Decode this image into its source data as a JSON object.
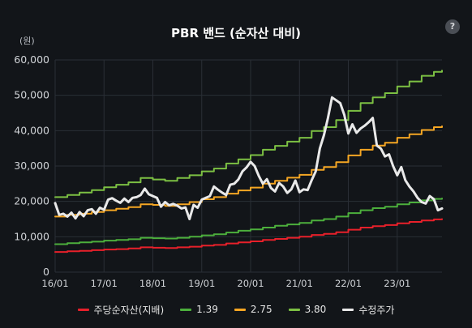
{
  "chart_data": {
    "type": "line",
    "title": "PBR 밴드 (순자산 대비)",
    "unit": "(원)",
    "help_icon_label": "?",
    "ylim": [
      0,
      60000
    ],
    "yticks": [
      "0",
      "10,000",
      "20,000",
      "30,000",
      "40,000",
      "50,000",
      "60,000"
    ],
    "ytick_values": [
      0,
      10000,
      20000,
      30000,
      40000,
      50000,
      60000
    ],
    "xlim": [
      "2016-01",
      "2023-12"
    ],
    "xticks": [
      "16/01",
      "17/01",
      "18/01",
      "19/01",
      "20/01",
      "21/01",
      "22/01",
      "23/01"
    ],
    "grid": true,
    "legend_position": "bottom",
    "colors": {
      "background": "#121519",
      "grid": "#2a2f36"
    },
    "series": [
      {
        "name": "주당순자산(지배)",
        "color": "#e8202a",
        "width": 2,
        "kind": "step",
        "points": [
          [
            "2016-01",
            5700
          ],
          [
            "2016-04",
            5900
          ],
          [
            "2016-07",
            6000
          ],
          [
            "2016-10",
            6200
          ],
          [
            "2017-01",
            6400
          ],
          [
            "2017-04",
            6500
          ],
          [
            "2017-07",
            6700
          ],
          [
            "2017-10",
            7000
          ],
          [
            "2018-01",
            6900
          ],
          [
            "2018-04",
            6800
          ],
          [
            "2018-07",
            7000
          ],
          [
            "2018-10",
            7200
          ],
          [
            "2019-01",
            7500
          ],
          [
            "2019-04",
            7700
          ],
          [
            "2019-07",
            8100
          ],
          [
            "2019-10",
            8400
          ],
          [
            "2020-01",
            8700
          ],
          [
            "2020-04",
            9100
          ],
          [
            "2020-07",
            9400
          ],
          [
            "2020-10",
            9700
          ],
          [
            "2021-01",
            10000
          ],
          [
            "2021-04",
            10500
          ],
          [
            "2021-07",
            10800
          ],
          [
            "2021-10",
            11300
          ],
          [
            "2022-01",
            12000
          ],
          [
            "2022-04",
            12600
          ],
          [
            "2022-07",
            13000
          ],
          [
            "2022-10",
            13300
          ],
          [
            "2023-01",
            13800
          ],
          [
            "2023-04",
            14200
          ],
          [
            "2023-07",
            14600
          ],
          [
            "2023-10",
            14900
          ],
          [
            "2023-12",
            15000
          ]
        ]
      },
      {
        "name": "1.39",
        "color": "#4caf3c",
        "width": 2,
        "kind": "step",
        "points": [
          [
            "2016-01",
            7900
          ],
          [
            "2016-04",
            8200
          ],
          [
            "2016-07",
            8400
          ],
          [
            "2016-10",
            8600
          ],
          [
            "2017-01",
            8900
          ],
          [
            "2017-04",
            9100
          ],
          [
            "2017-07",
            9300
          ],
          [
            "2017-10",
            9700
          ],
          [
            "2018-01",
            9600
          ],
          [
            "2018-04",
            9500
          ],
          [
            "2018-07",
            9700
          ],
          [
            "2018-10",
            10000
          ],
          [
            "2019-01",
            10400
          ],
          [
            "2019-04",
            10700
          ],
          [
            "2019-07",
            11200
          ],
          [
            "2019-10",
            11700
          ],
          [
            "2020-01",
            12100
          ],
          [
            "2020-04",
            12600
          ],
          [
            "2020-07",
            13100
          ],
          [
            "2020-10",
            13500
          ],
          [
            "2021-01",
            13900
          ],
          [
            "2021-04",
            14600
          ],
          [
            "2021-07",
            15000
          ],
          [
            "2021-10",
            15700
          ],
          [
            "2022-01",
            16700
          ],
          [
            "2022-04",
            17500
          ],
          [
            "2022-07",
            18100
          ],
          [
            "2022-10",
            18500
          ],
          [
            "2023-01",
            19200
          ],
          [
            "2023-04",
            19700
          ],
          [
            "2023-07",
            20300
          ],
          [
            "2023-10",
            20700
          ],
          [
            "2023-12",
            20850
          ]
        ]
      },
      {
        "name": "2.75",
        "color": "#f5a623",
        "width": 2,
        "kind": "step",
        "points": [
          [
            "2016-01",
            15700
          ],
          [
            "2016-04",
            16200
          ],
          [
            "2016-07",
            16500
          ],
          [
            "2016-10",
            17000
          ],
          [
            "2017-01",
            17500
          ],
          [
            "2017-04",
            17900
          ],
          [
            "2017-07",
            18400
          ],
          [
            "2017-10",
            19200
          ],
          [
            "2018-01",
            19000
          ],
          [
            "2018-04",
            18700
          ],
          [
            "2018-07",
            19200
          ],
          [
            "2018-10",
            19800
          ],
          [
            "2019-01",
            20600
          ],
          [
            "2019-04",
            21200
          ],
          [
            "2019-07",
            22200
          ],
          [
            "2019-10",
            23100
          ],
          [
            "2020-01",
            23900
          ],
          [
            "2020-04",
            25000
          ],
          [
            "2020-07",
            25800
          ],
          [
            "2020-10",
            26700
          ],
          [
            "2021-01",
            27500
          ],
          [
            "2021-04",
            28900
          ],
          [
            "2021-07",
            29700
          ],
          [
            "2021-10",
            31100
          ],
          [
            "2022-01",
            33000
          ],
          [
            "2022-04",
            34600
          ],
          [
            "2022-07",
            35800
          ],
          [
            "2022-10",
            36600
          ],
          [
            "2023-01",
            38000
          ],
          [
            "2023-04",
            39000
          ],
          [
            "2023-07",
            40200
          ],
          [
            "2023-10",
            41000
          ],
          [
            "2023-12",
            41250
          ]
        ]
      },
      {
        "name": "3.80",
        "color": "#7cc043",
        "width": 2,
        "kind": "step",
        "points": [
          [
            "2016-01",
            21200
          ],
          [
            "2016-04",
            21800
          ],
          [
            "2016-07",
            22500
          ],
          [
            "2016-10",
            23200
          ],
          [
            "2017-01",
            24000
          ],
          [
            "2017-04",
            24700
          ],
          [
            "2017-07",
            25400
          ],
          [
            "2017-10",
            26600
          ],
          [
            "2018-01",
            26200
          ],
          [
            "2018-04",
            25800
          ],
          [
            "2018-07",
            26600
          ],
          [
            "2018-10",
            27400
          ],
          [
            "2019-01",
            28500
          ],
          [
            "2019-04",
            29300
          ],
          [
            "2019-07",
            30700
          ],
          [
            "2019-10",
            31900
          ],
          [
            "2020-01",
            33100
          ],
          [
            "2020-04",
            34600
          ],
          [
            "2020-07",
            35700
          ],
          [
            "2020-10",
            36900
          ],
          [
            "2021-01",
            38000
          ],
          [
            "2021-04",
            39900
          ],
          [
            "2021-07",
            41000
          ],
          [
            "2021-10",
            43000
          ],
          [
            "2022-01",
            45600
          ],
          [
            "2022-04",
            47800
          ],
          [
            "2022-07",
            49400
          ],
          [
            "2022-10",
            50600
          ],
          [
            "2023-01",
            52500
          ],
          [
            "2023-04",
            53900
          ],
          [
            "2023-07",
            55500
          ],
          [
            "2023-10",
            56600
          ],
          [
            "2023-12",
            57000
          ]
        ]
      },
      {
        "name": "수정주가",
        "color": "#e9e9e9",
        "width": 3,
        "kind": "line",
        "points": [
          [
            "2016-01",
            19500
          ],
          [
            "2016-02",
            16200
          ],
          [
            "2016-03",
            16500
          ],
          [
            "2016-04",
            15700
          ],
          [
            "2016-05",
            16800
          ],
          [
            "2016-06",
            15200
          ],
          [
            "2016-07",
            17000
          ],
          [
            "2016-08",
            15800
          ],
          [
            "2016-09",
            17500
          ],
          [
            "2016-10",
            17800
          ],
          [
            "2016-11",
            16500
          ],
          [
            "2016-12",
            18200
          ],
          [
            "2017-01",
            17600
          ],
          [
            "2017-02",
            20500
          ],
          [
            "2017-03",
            20900
          ],
          [
            "2017-04",
            20200
          ],
          [
            "2017-05",
            19600
          ],
          [
            "2017-06",
            20800
          ],
          [
            "2017-07",
            19800
          ],
          [
            "2017-08",
            21000
          ],
          [
            "2017-09",
            21200
          ],
          [
            "2017-10",
            21800
          ],
          [
            "2017-11",
            23600
          ],
          [
            "2017-12",
            22000
          ],
          [
            "2018-01",
            21500
          ],
          [
            "2018-02",
            21000
          ],
          [
            "2018-03",
            18500
          ],
          [
            "2018-04",
            19800
          ],
          [
            "2018-05",
            18900
          ],
          [
            "2018-06",
            19300
          ],
          [
            "2018-07",
            18800
          ],
          [
            "2018-08",
            18000
          ],
          [
            "2018-09",
            18300
          ],
          [
            "2018-10",
            15000
          ],
          [
            "2018-11",
            19000
          ],
          [
            "2018-12",
            18200
          ],
          [
            "2019-01",
            20500
          ],
          [
            "2019-02",
            21000
          ],
          [
            "2019-03",
            21500
          ],
          [
            "2019-04",
            24200
          ],
          [
            "2019-05",
            23300
          ],
          [
            "2019-06",
            22500
          ],
          [
            "2019-07",
            21800
          ],
          [
            "2019-08",
            24700
          ],
          [
            "2019-09",
            25000
          ],
          [
            "2019-10",
            26200
          ],
          [
            "2019-11",
            28500
          ],
          [
            "2019-12",
            29600
          ],
          [
            "2020-01",
            31200
          ],
          [
            "2020-02",
            30000
          ],
          [
            "2020-03",
            27200
          ],
          [
            "2020-04",
            25000
          ],
          [
            "2020-05",
            26300
          ],
          [
            "2020-06",
            23800
          ],
          [
            "2020-07",
            22800
          ],
          [
            "2020-08",
            25200
          ],
          [
            "2020-09",
            24200
          ],
          [
            "2020-10",
            22400
          ],
          [
            "2020-11",
            23400
          ],
          [
            "2020-12",
            25900
          ],
          [
            "2021-01",
            22600
          ],
          [
            "2021-02",
            23400
          ],
          [
            "2021-03",
            23200
          ],
          [
            "2021-04",
            26000
          ],
          [
            "2021-05",
            28500
          ],
          [
            "2021-06",
            35000
          ],
          [
            "2021-07",
            38700
          ],
          [
            "2021-08",
            43600
          ],
          [
            "2021-09",
            49400
          ],
          [
            "2021-10",
            48600
          ],
          [
            "2021-11",
            47800
          ],
          [
            "2021-12",
            44500
          ],
          [
            "2022-01",
            39200
          ],
          [
            "2022-02",
            41800
          ],
          [
            "2022-03",
            39400
          ],
          [
            "2022-04",
            40600
          ],
          [
            "2022-05",
            41400
          ],
          [
            "2022-06",
            42400
          ],
          [
            "2022-07",
            43600
          ],
          [
            "2022-08",
            35800
          ],
          [
            "2022-09",
            34900
          ],
          [
            "2022-10",
            32700
          ],
          [
            "2022-11",
            33300
          ],
          [
            "2022-12",
            30000
          ],
          [
            "2023-01",
            27400
          ],
          [
            "2023-02",
            29700
          ],
          [
            "2023-03",
            26000
          ],
          [
            "2023-04",
            24200
          ],
          [
            "2023-05",
            22800
          ],
          [
            "2023-06",
            21000
          ],
          [
            "2023-07",
            19800
          ],
          [
            "2023-08",
            19400
          ],
          [
            "2023-09",
            21500
          ],
          [
            "2023-10",
            20600
          ],
          [
            "2023-11",
            17500
          ],
          [
            "2023-12",
            18000
          ]
        ]
      }
    ]
  }
}
